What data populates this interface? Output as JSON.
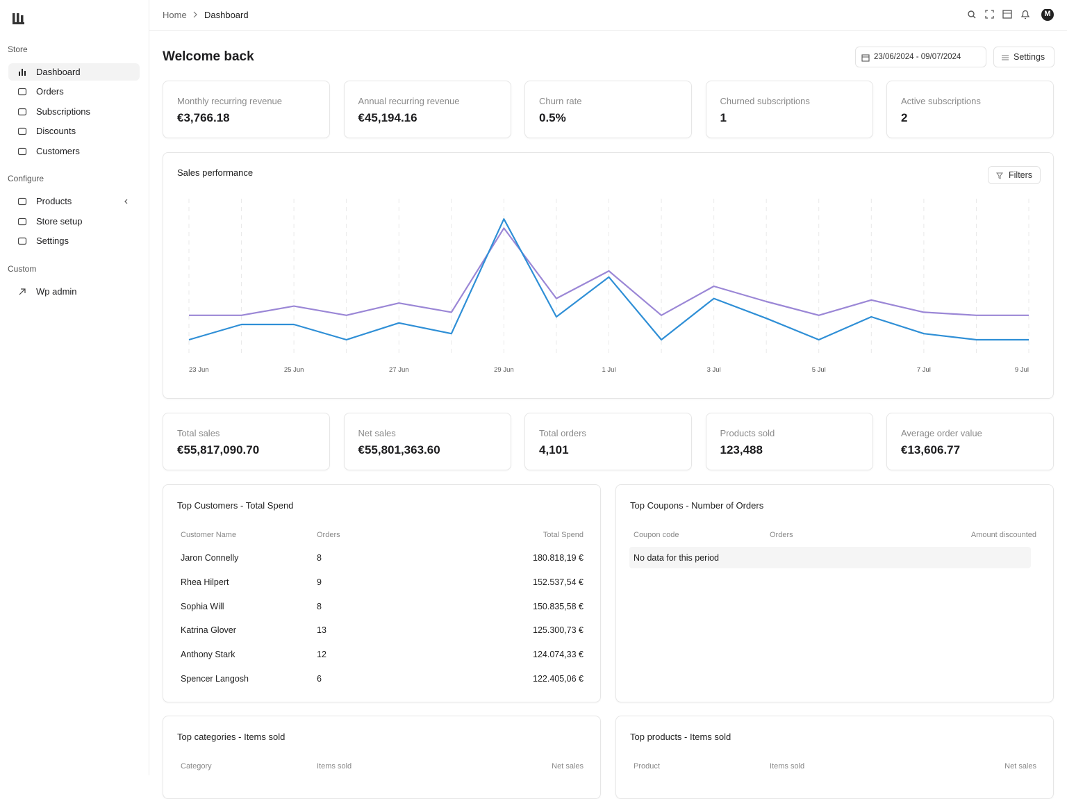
{
  "sidebar": {
    "sections": [
      {
        "title": "Store",
        "items": [
          "Dashboard",
          "Orders",
          "Subscriptions",
          "Discounts",
          "Customers"
        ]
      },
      {
        "title": "Configure",
        "items": [
          "Products",
          "Store setup",
          "Settings"
        ]
      },
      {
        "title": "Custom",
        "items": [
          "Wp admin"
        ]
      }
    ]
  },
  "header": {
    "breadcrumb": [
      "Home",
      "Dashboard"
    ],
    "avatar": "M"
  },
  "page": {
    "title": "Welcome back",
    "date_range": "23/06/2024 - 09/07/2024",
    "settings_button": "Settings"
  },
  "kpis_top": [
    {
      "label": "Monthly recurring revenue",
      "value": "€3,766.18"
    },
    {
      "label": "Annual recurring revenue",
      "value": "€45,194.16"
    },
    {
      "label": "Churn rate",
      "value": "0.5%"
    },
    {
      "label": "Churned subscriptions",
      "value": "1"
    },
    {
      "label": "Active subscriptions",
      "value": "2"
    }
  ],
  "filters_button": "Filters",
  "chart_data": {
    "type": "line",
    "title": "Sales performance",
    "categories": [
      "23 Jun",
      null,
      "25 Jun",
      null,
      "27 Jun",
      null,
      "29 Jun",
      null,
      "1 Jul",
      null,
      "3 Jul",
      null,
      "5 Jul",
      null,
      "7 Jul",
      null,
      "9 Jul"
    ],
    "series": [
      {
        "color": "#9b87d6",
        "values": [
          26,
          26,
          32,
          26,
          34,
          28,
          83,
          37,
          55,
          26,
          45,
          35,
          26,
          36,
          28,
          26,
          26
        ]
      },
      {
        "color": "#2f8fd6",
        "values": [
          10,
          20,
          20,
          10,
          21,
          14,
          89,
          25,
          51,
          10,
          37,
          24,
          10,
          25,
          14,
          10,
          10
        ]
      }
    ],
    "ylim": [
      0,
      100
    ],
    "grid": true
  },
  "kpis_bottom": [
    {
      "label": "Total sales",
      "value": "€55,817,090.70"
    },
    {
      "label": "Net sales",
      "value": "€55,801,363.60"
    },
    {
      "label": "Total orders",
      "value": "4,101"
    },
    {
      "label": "Products sold",
      "value": "123,488"
    },
    {
      "label": "Average order value",
      "value": "€13,606.77"
    }
  ],
  "top_customers": {
    "title": "Top Customers - Total Spend",
    "headers": [
      "Customer Name",
      "Orders",
      "Total Spend"
    ],
    "rows": [
      [
        "Jaron Connelly",
        "8",
        "180.818,19 €"
      ],
      [
        "Rhea Hilpert",
        "9",
        "152.537,54 €"
      ],
      [
        "Sophia Will",
        "8",
        "150.835,58 €"
      ],
      [
        "Katrina Glover",
        "13",
        "125.300,73 €"
      ],
      [
        "Anthony Stark",
        "12",
        "124.074,33 €"
      ],
      [
        "Spencer Langosh",
        "6",
        "122.405,06 €"
      ]
    ]
  },
  "top_coupons": {
    "title": "Top Coupons - Number of Orders",
    "headers": [
      "Coupon code",
      "Orders",
      "Amount discounted"
    ],
    "empty": "No data for this period"
  },
  "top_categories": {
    "title": "Top categories - Items sold",
    "headers": [
      "Category",
      "Items sold",
      "Net sales"
    ]
  },
  "top_products": {
    "title": "Top products - Items sold",
    "headers": [
      "Product",
      "Items sold",
      "Net sales"
    ]
  }
}
